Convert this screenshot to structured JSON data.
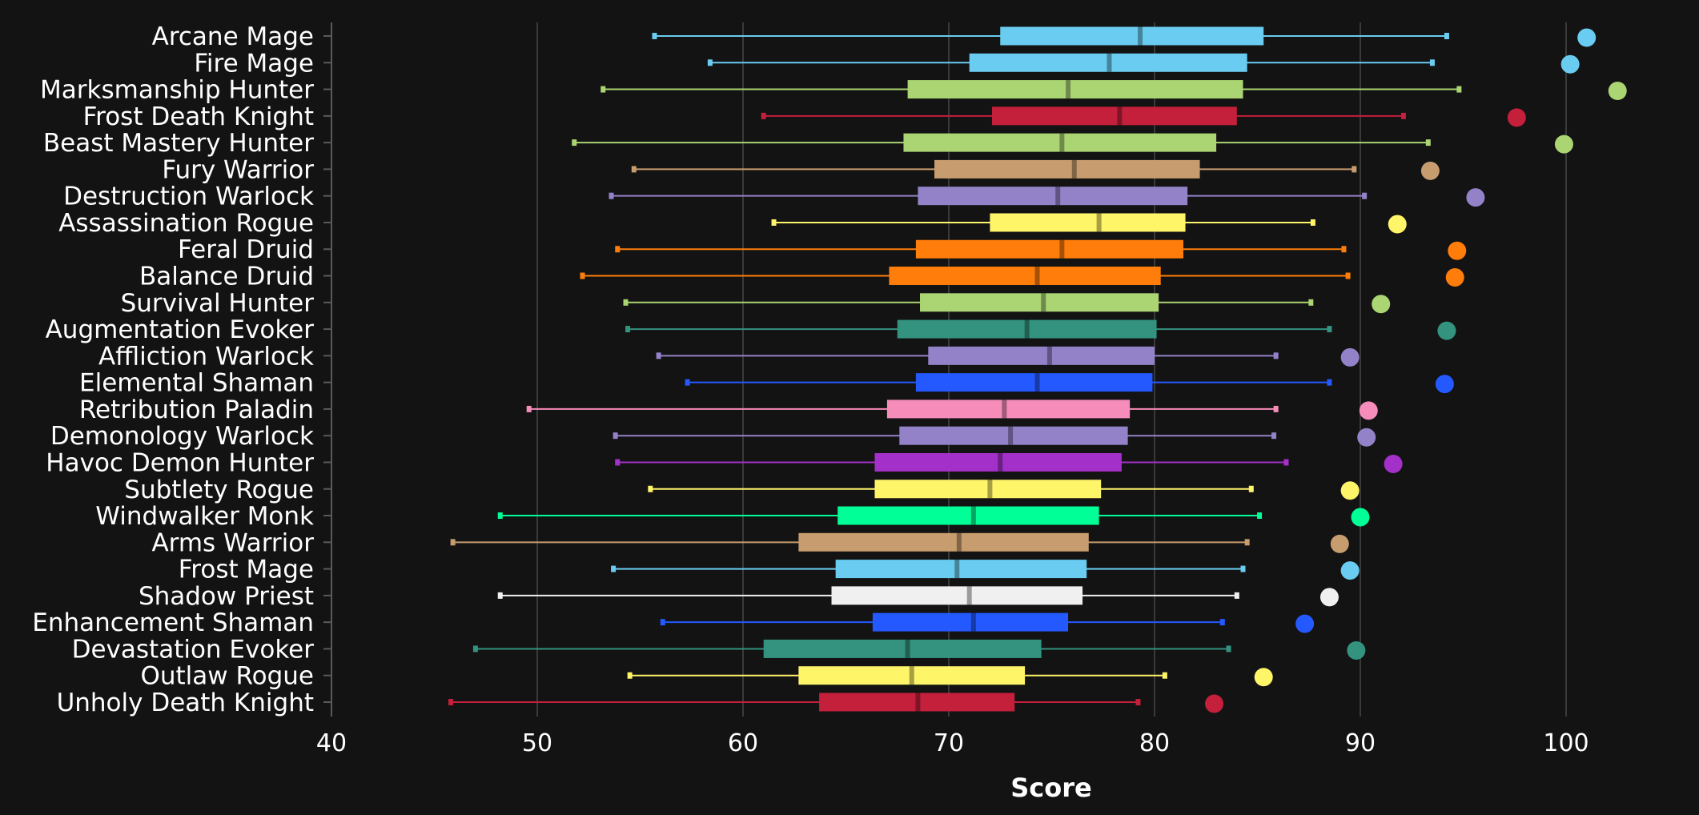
{
  "chart_data": {
    "type": "boxplot",
    "title": "",
    "xlabel": "Score",
    "ylabel": "",
    "xlim": [
      40,
      106
    ],
    "xticks": [
      "40",
      "50",
      "60",
      "70",
      "80",
      "90",
      "100"
    ],
    "grid": "vertical",
    "legend": "none",
    "series": [
      {
        "name": "Arcane Mage",
        "color": "#69ccf0",
        "min": 55.7,
        "q1": 72.5,
        "median": 79.3,
        "q3": 85.3,
        "max": 94.2,
        "top": 101.0
      },
      {
        "name": "Fire Mage",
        "color": "#69ccf0",
        "min": 58.4,
        "q1": 71.0,
        "median": 77.8,
        "q3": 84.5,
        "max": 93.5,
        "top": 100.2
      },
      {
        "name": "Marksmanship Hunter",
        "color": "#abd473",
        "min": 53.2,
        "q1": 68.0,
        "median": 75.8,
        "q3": 84.3,
        "max": 94.8,
        "top": 102.5
      },
      {
        "name": "Frost Death Knight",
        "color": "#c41f3b",
        "min": 61.0,
        "q1": 72.1,
        "median": 78.3,
        "q3": 84.0,
        "max": 92.1,
        "top": 97.6
      },
      {
        "name": "Beast Mastery Hunter",
        "color": "#abd473",
        "min": 51.8,
        "q1": 67.8,
        "median": 75.5,
        "q3": 83.0,
        "max": 93.3,
        "top": 99.9
      },
      {
        "name": "Fury Warrior",
        "color": "#c79c6e",
        "min": 54.7,
        "q1": 69.3,
        "median": 76.1,
        "q3": 82.2,
        "max": 89.7,
        "top": 93.4
      },
      {
        "name": "Destruction Warlock",
        "color": "#9482c9",
        "min": 53.6,
        "q1": 68.5,
        "median": 75.3,
        "q3": 81.6,
        "max": 90.2,
        "top": 95.6
      },
      {
        "name": "Assassination Rogue",
        "color": "#fff569",
        "min": 61.5,
        "q1": 72.0,
        "median": 77.3,
        "q3": 81.5,
        "max": 87.7,
        "top": 91.8
      },
      {
        "name": "Feral Druid",
        "color": "#ff7d0a",
        "min": 53.9,
        "q1": 68.4,
        "median": 75.5,
        "q3": 81.4,
        "max": 89.2,
        "top": 94.7
      },
      {
        "name": "Balance Druid",
        "color": "#ff7d0a",
        "min": 52.2,
        "q1": 67.1,
        "median": 74.3,
        "q3": 80.3,
        "max": 89.4,
        "top": 94.6
      },
      {
        "name": "Survival Hunter",
        "color": "#abd473",
        "min": 54.3,
        "q1": 68.6,
        "median": 74.6,
        "q3": 80.2,
        "max": 87.6,
        "top": 91.0
      },
      {
        "name": "Augmentation Evoker",
        "color": "#33937f",
        "min": 54.4,
        "q1": 67.5,
        "median": 73.8,
        "q3": 80.1,
        "max": 88.5,
        "top": 94.2
      },
      {
        "name": "Affliction Warlock",
        "color": "#9482c9",
        "min": 55.9,
        "q1": 69.0,
        "median": 74.9,
        "q3": 80.0,
        "max": 85.9,
        "top": 89.5
      },
      {
        "name": "Elemental Shaman",
        "color": "#2459ff",
        "min": 57.3,
        "q1": 68.4,
        "median": 74.3,
        "q3": 79.9,
        "max": 88.5,
        "top": 94.1
      },
      {
        "name": "Retribution Paladin",
        "color": "#f58cba",
        "min": 49.6,
        "q1": 67.0,
        "median": 72.7,
        "q3": 78.8,
        "max": 85.9,
        "top": 90.4
      },
      {
        "name": "Demonology Warlock",
        "color": "#9482c9",
        "min": 53.8,
        "q1": 67.6,
        "median": 73.0,
        "q3": 78.7,
        "max": 85.8,
        "top": 90.3
      },
      {
        "name": "Havoc Demon Hunter",
        "color": "#a330c9",
        "min": 53.9,
        "q1": 66.4,
        "median": 72.5,
        "q3": 78.4,
        "max": 86.4,
        "top": 91.6
      },
      {
        "name": "Subtlety Rogue",
        "color": "#fff569",
        "min": 55.5,
        "q1": 66.4,
        "median": 72.0,
        "q3": 77.4,
        "max": 84.7,
        "top": 89.5
      },
      {
        "name": "Windwalker Monk",
        "color": "#00ff96",
        "min": 48.2,
        "q1": 64.6,
        "median": 71.2,
        "q3": 77.3,
        "max": 85.1,
        "top": 90.0
      },
      {
        "name": "Arms Warrior",
        "color": "#c79c6e",
        "min": 45.9,
        "q1": 62.7,
        "median": 70.5,
        "q3": 76.8,
        "max": 84.5,
        "top": 89.0
      },
      {
        "name": "Frost Mage",
        "color": "#69ccf0",
        "min": 53.7,
        "q1": 64.5,
        "median": 70.4,
        "q3": 76.7,
        "max": 84.3,
        "top": 89.5
      },
      {
        "name": "Shadow Priest",
        "color": "#f0f0f0",
        "min": 48.2,
        "q1": 64.3,
        "median": 71.0,
        "q3": 76.5,
        "max": 84.0,
        "top": 88.5
      },
      {
        "name": "Enhancement Shaman",
        "color": "#2459ff",
        "min": 56.1,
        "q1": 66.3,
        "median": 71.2,
        "q3": 75.8,
        "max": 83.3,
        "top": 87.3
      },
      {
        "name": "Devastation Evoker",
        "color": "#33937f",
        "min": 47.0,
        "q1": 61.0,
        "median": 68.0,
        "q3": 74.5,
        "max": 83.6,
        "top": 89.8
      },
      {
        "name": "Outlaw Rogue",
        "color": "#fff569",
        "min": 54.5,
        "q1": 62.7,
        "median": 68.2,
        "q3": 73.7,
        "max": 80.5,
        "top": 85.3
      },
      {
        "name": "Unholy Death Knight",
        "color": "#c41f3b",
        "min": 45.8,
        "q1": 63.7,
        "median": 68.5,
        "q3": 73.2,
        "max": 79.2,
        "top": 82.9
      }
    ]
  }
}
